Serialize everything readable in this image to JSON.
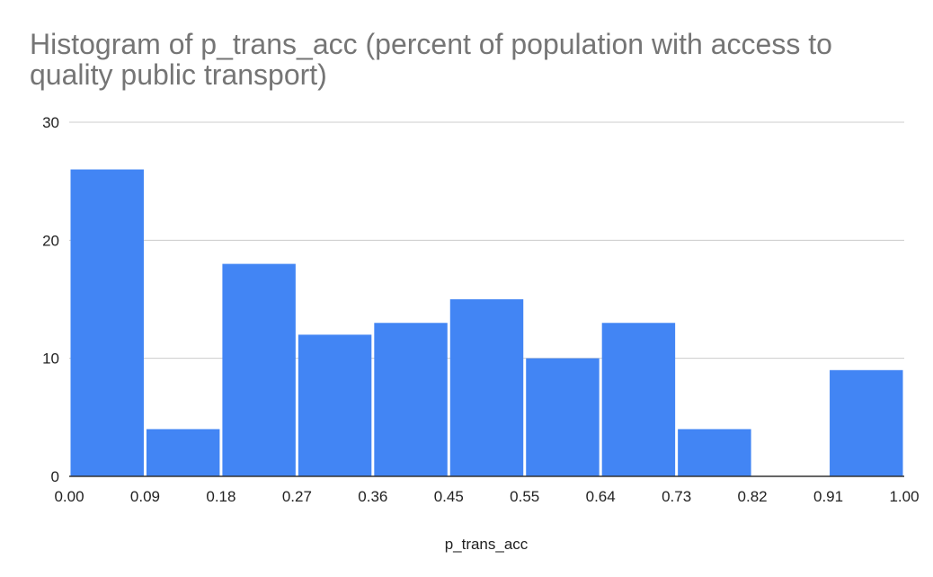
{
  "chart_data": {
    "type": "bar",
    "subtype": "histogram",
    "title": "Histogram of p_trans_acc (percent of population with access to quality public transport)",
    "xlabel": "p_trans_acc",
    "ylabel": "",
    "x_ticks": [
      "0.00",
      "0.09",
      "0.18",
      "0.27",
      "0.36",
      "0.45",
      "0.55",
      "0.64",
      "0.73",
      "0.82",
      "0.91",
      "1.00"
    ],
    "y_ticks": [
      "0",
      "10",
      "20",
      "30"
    ],
    "ylim": [
      0,
      30
    ],
    "grid": true,
    "legend": "none",
    "bar_color": "#4285f4",
    "values": [
      26,
      4,
      18,
      12,
      13,
      15,
      10,
      13,
      4,
      0,
      9
    ]
  }
}
